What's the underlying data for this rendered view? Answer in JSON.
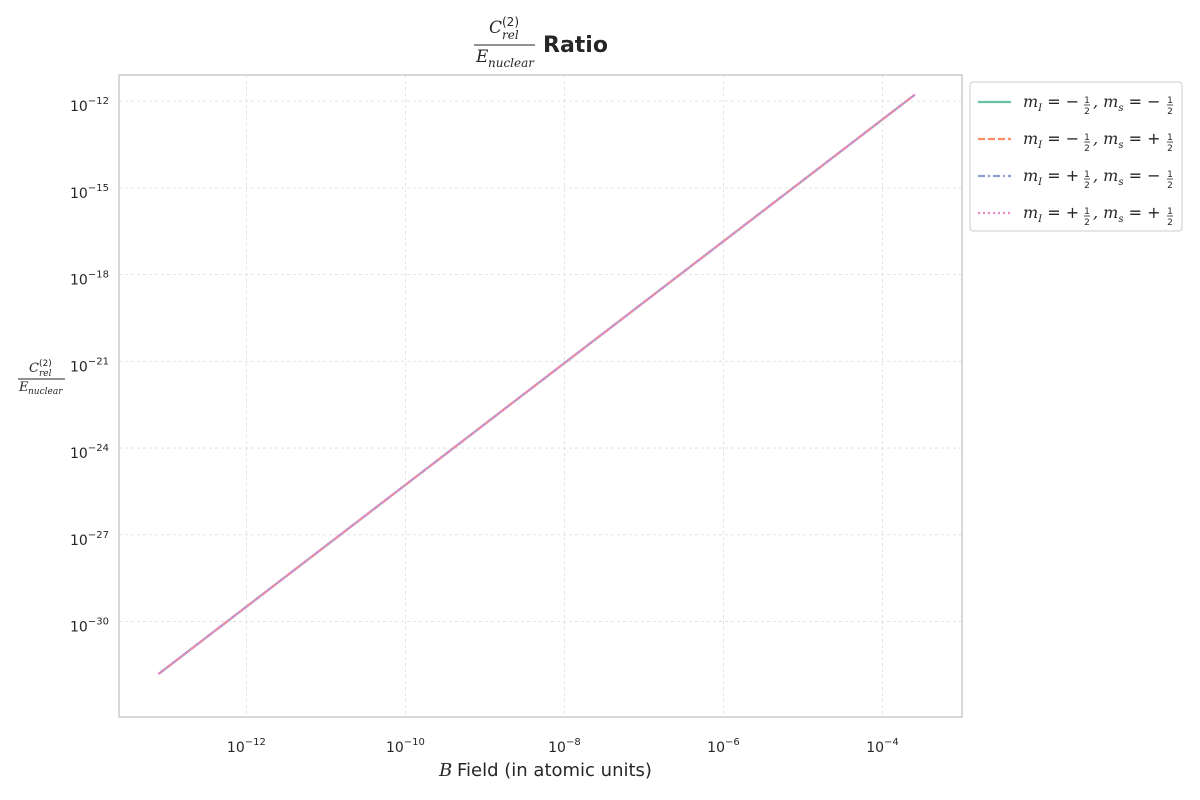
{
  "chart_data": {
    "type": "line",
    "title": {
      "numerator_base": "C",
      "numerator_superscript": "(2)",
      "numerator_subscript": "rel",
      "denominator_base": "E",
      "denominator_subscript": "nuclear",
      "suffix": "Ratio"
    },
    "xlabel": {
      "symbol": "B",
      "text": "Field (in atomic units)"
    },
    "ylabel": {
      "numerator_base": "C",
      "numerator_superscript": "(2)",
      "numerator_subscript": "rel",
      "denominator_base": "E",
      "denominator_subscript": "nuclear"
    },
    "x_scale": "log",
    "y_scale": "log",
    "xlim": [
      2.5e-14,
      0.001
    ],
    "ylim": [
      5e-34,
      8e-12
    ],
    "x_ticks": [
      {
        "base": "10",
        "exponent": "−12",
        "value": 1e-12
      },
      {
        "base": "10",
        "exponent": "−10",
        "value": 1e-10
      },
      {
        "base": "10",
        "exponent": "−8",
        "value": 1e-08
      },
      {
        "base": "10",
        "exponent": "−6",
        "value": 1e-06
      },
      {
        "base": "10",
        "exponent": "−4",
        "value": 0.0001
      }
    ],
    "y_ticks": [
      {
        "base": "10",
        "exponent": "−12",
        "value": 1e-12
      },
      {
        "base": "10",
        "exponent": "−15",
        "value": 1e-15
      },
      {
        "base": "10",
        "exponent": "−18",
        "value": 1e-18
      },
      {
        "base": "10",
        "exponent": "−21",
        "value": 1e-21
      },
      {
        "base": "10",
        "exponent": "−24",
        "value": 1e-24
      },
      {
        "base": "10",
        "exponent": "−27",
        "value": 1e-27
      },
      {
        "base": "10",
        "exponent": "−30",
        "value": 1e-30
      }
    ],
    "grid": true,
    "legend_position": "outside-top-right",
    "series": [
      {
        "label": {
          "mI_sign": "−",
          "ms_sign": "−"
        },
        "color": "#66c2a5",
        "dash": "solid",
        "x": [
          8e-14,
          0.00025
        ],
        "y": [
          1.6e-32,
          1.6e-12
        ]
      },
      {
        "label": {
          "mI_sign": "−",
          "ms_sign": "+"
        },
        "color": "#fc8d62",
        "dash": "dashed",
        "x": [
          8e-14,
          0.00025
        ],
        "y": [
          1.6e-32,
          1.6e-12
        ]
      },
      {
        "label": {
          "mI_sign": "+",
          "ms_sign": "−"
        },
        "color": "#8da0cb",
        "dash": "dashdot",
        "x": [
          8e-14,
          0.00025
        ],
        "y": [
          1.6e-32,
          1.6e-12
        ]
      },
      {
        "label": {
          "mI_sign": "+",
          "ms_sign": "+"
        },
        "color": "#e78ac3",
        "dash": "dotted",
        "x": [
          8e-14,
          0.00025
        ],
        "y": [
          1.6e-32,
          1.6e-12
        ]
      }
    ]
  }
}
